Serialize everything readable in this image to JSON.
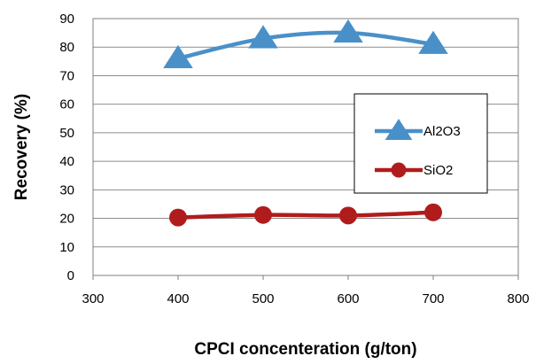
{
  "chart_data": {
    "type": "line",
    "title": "",
    "xlabel": "CPCI concenteration (g/ton)",
    "ylabel": "Recovery (%)",
    "xlim": [
      300,
      800
    ],
    "ylim": [
      0,
      90
    ],
    "xticks": [
      300,
      400,
      500,
      600,
      700,
      800
    ],
    "yticks": [
      0,
      10,
      20,
      30,
      40,
      50,
      60,
      70,
      80,
      90
    ],
    "grid": "horizontal",
    "legend_position": "right",
    "series": [
      {
        "name": "Al2O3",
        "color": "#4a90c8",
        "marker": "triangle",
        "smooth": true,
        "x": [
          400,
          500,
          600,
          700
        ],
        "y": [
          76,
          83,
          85,
          81
        ]
      },
      {
        "name": "SiO2",
        "color": "#b01c1c",
        "marker": "circle",
        "smooth": true,
        "x": [
          400,
          500,
          600,
          700
        ],
        "y": [
          20.3,
          21.2,
          21,
          22.1
        ]
      }
    ]
  }
}
